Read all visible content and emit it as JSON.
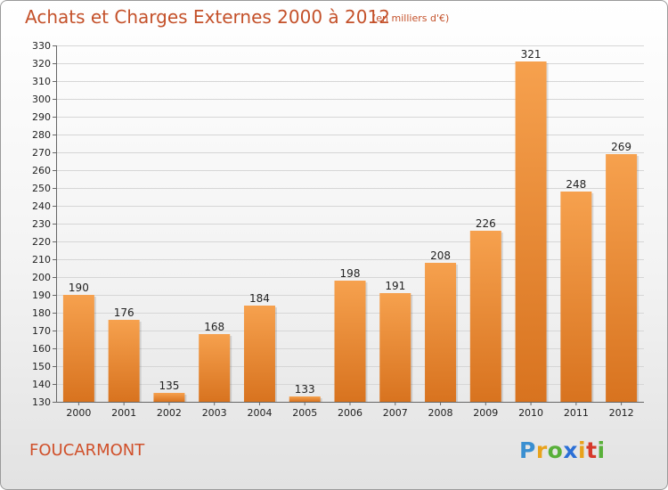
{
  "header": {
    "title": "Achats et Charges Externes 2000 à 2012",
    "subtitle": "(en milliers d'€)"
  },
  "footer": {
    "commune": "FOUCARMONT",
    "logo_letters": [
      "P",
      "r",
      "o",
      "x",
      "i",
      "t",
      "i"
    ],
    "logo_colors": [
      "#3a8fd1",
      "#e8a21b",
      "#59b03a",
      "#2b6fd6",
      "#e8a21b",
      "#d63a2b",
      "#59b03a"
    ]
  },
  "chart_data": {
    "type": "bar",
    "categories": [
      "2000",
      "2001",
      "2002",
      "2003",
      "2004",
      "2005",
      "2006",
      "2007",
      "2008",
      "2009",
      "2010",
      "2011",
      "2012"
    ],
    "values": [
      190,
      176,
      135,
      168,
      184,
      133,
      198,
      191,
      208,
      226,
      321,
      248,
      269
    ],
    "title": "Achats et Charges Externes 2000 à 2012",
    "subtitle": "(en milliers d'€)",
    "ylim": [
      130,
      330
    ],
    "yticks": [
      130,
      140,
      150,
      160,
      170,
      180,
      190,
      200,
      210,
      220,
      230,
      240,
      250,
      260,
      270,
      280,
      290,
      300,
      310,
      320,
      330
    ],
    "grid": true,
    "bar_color_top": "#f6a14e",
    "bar_color_bottom": "#d8731f"
  }
}
